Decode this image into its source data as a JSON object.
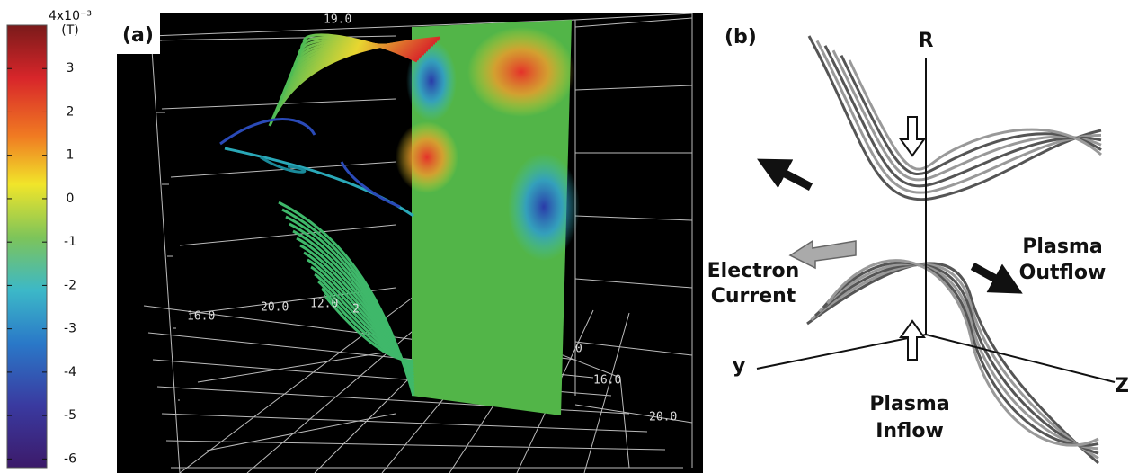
{
  "colorbar": {
    "top_label": "4x10⁻³",
    "unit": "(T)",
    "ticks": [
      3,
      2,
      1,
      0,
      -1,
      -2,
      -3,
      -4,
      -5,
      -6
    ],
    "range": [
      -6.2,
      4
    ]
  },
  "panel_a": {
    "label": "(a)",
    "axis_labels": [
      "19.0",
      "20.0",
      "16.0",
      "12.0",
      "2",
      "0",
      "16.0",
      "20.0"
    ]
  },
  "panel_b": {
    "label": "(b)",
    "axes": {
      "r": "R",
      "y": "y",
      "z": "Z"
    },
    "electron_current": [
      "Electron",
      "Current"
    ],
    "plasma_outflow": [
      "Plasma",
      "Outflow"
    ],
    "plasma_inflow": [
      "Plasma",
      "Inflow"
    ]
  }
}
